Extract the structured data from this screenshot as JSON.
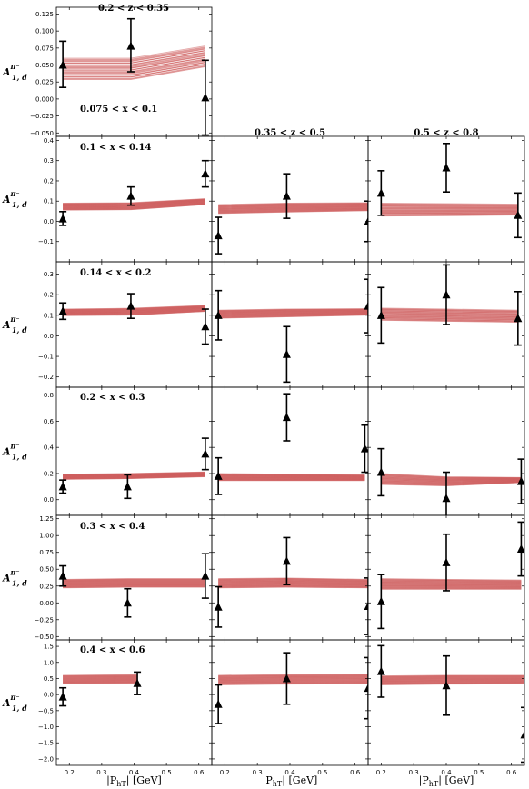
{
  "figure": {
    "column_titles": [
      "0.2 < z < 0.35",
      "0.35 < z < 0.5",
      "0.5 < z < 0.8"
    ],
    "row_labels": [
      "0.075 < x < 0.1",
      "0.1 < x < 0.14",
      "0.14 < x < 0.2",
      "0.2 < x < 0.3",
      "0.3 < x < 0.4",
      "0.4 < x < 0.6"
    ],
    "ylabel": "A",
    "ylabel_sup": "π⁻",
    "ylabel_sub": "1, d",
    "xlabel": "|P",
    "xlabel_sub": "hT",
    "xlabel_unit": "| [GeV]",
    "x_ticks": [
      0.2,
      0.3,
      0.4,
      0.5,
      0.6
    ],
    "x_tick_labels": [
      "0.2",
      "0.3",
      "0.4",
      "0.5",
      "0.6"
    ],
    "xlim": [
      0.16,
      0.64
    ],
    "band_color": "#cd5c5c",
    "marker_color": "#000000"
  },
  "chart_data": [
    {
      "type": "scatter",
      "row": 0,
      "col": 0,
      "ylim": [
        -0.055,
        0.135
      ],
      "yticks": [
        -0.05,
        -0.025,
        0.0,
        0.025,
        0.05,
        0.075,
        0.1,
        0.125
      ],
      "ytick_labels": [
        "−0.050",
        "−0.025",
        "0.000",
        "0.025",
        "0.050",
        "0.075",
        "0.100",
        "0.125"
      ],
      "x": [
        0.18,
        0.39,
        0.62
      ],
      "y": [
        0.05,
        0.078,
        0.002
      ],
      "yerr": [
        [
          0.033,
          0.035
        ],
        [
          0.038,
          0.04
        ],
        [
          0.055,
          0.055
        ]
      ],
      "band": {
        "x": [
          0.18,
          0.39,
          0.62
        ],
        "lo": [
          0.028,
          0.028,
          0.047
        ],
        "hi": [
          0.06,
          0.06,
          0.078
        ]
      }
    },
    {
      "type": "scatter",
      "row": 1,
      "col": 0,
      "ylim": [
        -0.2,
        0.42
      ],
      "yticks": [
        -0.1,
        0.0,
        0.1,
        0.2,
        0.3,
        0.4
      ],
      "ytick_labels": [
        "−0.1",
        "0.0",
        "0.1",
        "0.2",
        "0.3",
        "0.4"
      ],
      "x": [
        0.18,
        0.39,
        0.62
      ],
      "y": [
        0.013,
        0.125,
        0.235
      ],
      "yerr": [
        [
          0.033,
          0.035
        ],
        [
          0.045,
          0.045
        ],
        [
          0.065,
          0.065
        ]
      ],
      "band": {
        "x": [
          0.18,
          0.39,
          0.62
        ],
        "lo": [
          0.055,
          0.057,
          0.082
        ],
        "hi": [
          0.09,
          0.092,
          0.112
        ]
      }
    },
    {
      "type": "scatter",
      "row": 1,
      "col": 1,
      "ylim": [
        -0.2,
        0.42
      ],
      "yticks": [
        -0.1,
        0.0,
        0.1,
        0.2,
        0.3,
        0.4
      ],
      "ytick_labels": [],
      "x": [
        0.18,
        0.39,
        0.64
      ],
      "y": [
        -0.07,
        0.125,
        0.0
      ],
      "yerr": [
        [
          0.09,
          0.09
        ],
        [
          0.11,
          0.11
        ],
        [
          0.1,
          0.1
        ]
      ],
      "band": {
        "x": [
          0.18,
          0.39,
          0.64
        ],
        "lo": [
          0.038,
          0.045,
          0.052
        ],
        "hi": [
          0.083,
          0.09,
          0.092
        ]
      }
    },
    {
      "type": "scatter",
      "row": 1,
      "col": 2,
      "ylim": [
        -0.2,
        0.42
      ],
      "yticks": [
        -0.1,
        0.0,
        0.1,
        0.2,
        0.3,
        0.4
      ],
      "ytick_labels": [],
      "x": [
        0.2,
        0.4,
        0.62
      ],
      "y": [
        0.14,
        0.265,
        0.03
      ],
      "yerr": [
        [
          0.11,
          0.11
        ],
        [
          0.12,
          0.12
        ],
        [
          0.11,
          0.11
        ]
      ],
      "band": {
        "x": [
          0.2,
          0.4,
          0.62
        ],
        "lo": [
          0.025,
          0.027,
          0.03
        ],
        "hi": [
          0.09,
          0.088,
          0.085
        ]
      }
    },
    {
      "type": "scatter",
      "row": 2,
      "col": 0,
      "ylim": [
        -0.25,
        0.36
      ],
      "yticks": [
        -0.2,
        -0.1,
        0.0,
        0.1,
        0.2,
        0.3
      ],
      "ytick_labels": [
        "−0.2",
        "−0.1",
        "0.0",
        "0.1",
        "0.2",
        "0.3"
      ],
      "x": [
        0.18,
        0.39,
        0.62
      ],
      "y": [
        0.12,
        0.145,
        0.045
      ],
      "yerr": [
        [
          0.04,
          0.04
        ],
        [
          0.06,
          0.06
        ],
        [
          0.085,
          0.085
        ]
      ],
      "band": {
        "x": [
          0.18,
          0.39,
          0.62
        ],
        "lo": [
          0.098,
          0.1,
          0.118
        ],
        "hi": [
          0.13,
          0.134,
          0.148
        ]
      }
    },
    {
      "type": "scatter",
      "row": 2,
      "col": 1,
      "ylim": [
        -0.25,
        0.36
      ],
      "yticks": [
        -0.2,
        -0.1,
        0.0,
        0.1,
        0.2,
        0.3
      ],
      "ytick_labels": [],
      "x": [
        0.18,
        0.39,
        0.64
      ],
      "y": [
        0.1,
        -0.09,
        0.145
      ],
      "yerr": [
        [
          0.12,
          0.12
        ],
        [
          0.135,
          0.135
        ],
        [
          0.13,
          0.13
        ]
      ],
      "band": {
        "x": [
          0.18,
          0.39,
          0.64
        ],
        "lo": [
          0.085,
          0.092,
          0.1
        ],
        "hi": [
          0.125,
          0.13,
          0.132
        ]
      }
    },
    {
      "type": "scatter",
      "row": 2,
      "col": 2,
      "ylim": [
        -0.25,
        0.36
      ],
      "yticks": [
        -0.2,
        -0.1,
        0.0,
        0.1,
        0.2,
        0.3
      ],
      "ytick_labels": [],
      "x": [
        0.2,
        0.4,
        0.62
      ],
      "y": [
        0.1,
        0.2,
        0.085
      ],
      "yerr": [
        [
          0.135,
          0.135
        ],
        [
          0.145,
          0.145
        ],
        [
          0.13,
          0.13
        ]
      ],
      "band": {
        "x": [
          0.2,
          0.4,
          0.62
        ],
        "lo": [
          0.075,
          0.07,
          0.065
        ],
        "hi": [
          0.135,
          0.13,
          0.125
        ]
      }
    },
    {
      "type": "scatter",
      "row": 3,
      "col": 0,
      "ylim": [
        -0.12,
        0.86
      ],
      "yticks": [
        0.0,
        0.2,
        0.4,
        0.6,
        0.8
      ],
      "ytick_labels": [
        "0.0",
        "0.2",
        "0.4",
        "0.6",
        "0.8"
      ],
      "x": [
        0.18,
        0.38,
        0.62
      ],
      "y": [
        0.1,
        0.1,
        0.35
      ],
      "yerr": [
        [
          0.05,
          0.05
        ],
        [
          0.09,
          0.09
        ],
        [
          0.12,
          0.12
        ]
      ],
      "band": {
        "x": [
          0.18,
          0.38,
          0.62
        ],
        "lo": [
          0.155,
          0.16,
          0.175
        ],
        "hi": [
          0.195,
          0.2,
          0.212
        ]
      }
    },
    {
      "type": "scatter",
      "row": 3,
      "col": 1,
      "ylim": [
        -0.12,
        0.86
      ],
      "yticks": [
        0.0,
        0.2,
        0.4,
        0.6,
        0.8
      ],
      "ytick_labels": [],
      "x": [
        0.18,
        0.39,
        0.63
      ],
      "y": [
        0.18,
        0.63,
        0.39
      ],
      "yerr": [
        [
          0.14,
          0.14
        ],
        [
          0.18,
          0.18
        ],
        [
          0.18,
          0.18
        ]
      ],
      "band": {
        "x": [
          0.18,
          0.39,
          0.63
        ],
        "lo": [
          0.145,
          0.145,
          0.145
        ],
        "hi": [
          0.2,
          0.195,
          0.19
        ]
      }
    },
    {
      "type": "scatter",
      "row": 3,
      "col": 2,
      "ylim": [
        -0.12,
        0.86
      ],
      "yticks": [
        0.0,
        0.2,
        0.4,
        0.6,
        0.8
      ],
      "ytick_labels": [],
      "x": [
        0.2,
        0.4,
        0.63
      ],
      "y": [
        0.21,
        0.01,
        0.14
      ],
      "yerr": [
        [
          0.18,
          0.18
        ],
        [
          0.2,
          0.2
        ],
        [
          0.17,
          0.17
        ]
      ],
      "band": {
        "x": [
          0.2,
          0.4,
          0.63
        ],
        "lo": [
          0.115,
          0.105,
          0.13
        ],
        "hi": [
          0.2,
          0.175,
          0.17
        ]
      }
    },
    {
      "type": "scatter",
      "row": 4,
      "col": 0,
      "ylim": [
        -0.55,
        1.3
      ],
      "yticks": [
        -0.5,
        -0.25,
        0.0,
        0.25,
        0.5,
        0.75,
        1.0,
        1.25
      ],
      "ytick_labels": [
        "−0.50",
        "−0.25",
        "0.00",
        "0.25",
        "0.50",
        "0.75",
        "1.00",
        "1.25"
      ],
      "x": [
        0.18,
        0.38,
        0.62
      ],
      "y": [
        0.4,
        0.0,
        0.4
      ],
      "yerr": [
        [
          0.15,
          0.15
        ],
        [
          0.21,
          0.21
        ],
        [
          0.33,
          0.33
        ]
      ],
      "band": {
        "x": [
          0.18,
          0.38,
          0.62
        ],
        "lo": [
          0.22,
          0.23,
          0.23
        ],
        "hi": [
          0.35,
          0.36,
          0.36
        ]
      }
    },
    {
      "type": "scatter",
      "row": 4,
      "col": 1,
      "ylim": [
        -0.55,
        1.3
      ],
      "yticks": [
        -0.5,
        -0.25,
        0.0,
        0.25,
        0.5,
        0.75,
        1.0,
        1.25
      ],
      "ytick_labels": [],
      "x": [
        0.18,
        0.39,
        0.64
      ],
      "y": [
        -0.06,
        0.62,
        -0.05
      ],
      "yerr": [
        [
          0.3,
          0.3
        ],
        [
          0.35,
          0.35
        ],
        [
          0.42,
          0.42
        ]
      ],
      "band": {
        "x": [
          0.18,
          0.39,
          0.64
        ],
        "lo": [
          0.22,
          0.23,
          0.22
        ],
        "hi": [
          0.36,
          0.37,
          0.35
        ]
      }
    },
    {
      "type": "scatter",
      "row": 4,
      "col": 2,
      "ylim": [
        -0.55,
        1.3
      ],
      "yticks": [
        -0.5,
        -0.25,
        0.0,
        0.25,
        0.5,
        0.75,
        1.0,
        1.25
      ],
      "ytick_labels": [],
      "x": [
        0.2,
        0.4,
        0.63
      ],
      "y": [
        0.02,
        0.6,
        0.8
      ],
      "yerr": [
        [
          0.4,
          0.4
        ],
        [
          0.42,
          0.42
        ],
        [
          0.4,
          0.4
        ]
      ],
      "band": {
        "x": [
          0.2,
          0.4,
          0.63
        ],
        "lo": [
          0.2,
          0.2,
          0.2
        ],
        "hi": [
          0.36,
          0.35,
          0.34
        ]
      }
    },
    {
      "type": "scatter",
      "row": 5,
      "col": 0,
      "ylim": [
        -2.2,
        1.7
      ],
      "yticks": [
        -2.0,
        -1.5,
        -1.0,
        -0.5,
        0.0,
        0.5,
        1.0,
        1.5
      ],
      "ytick_labels": [
        "−2.0",
        "−1.5",
        "−1.0",
        "−0.5",
        "0.0",
        "0.5",
        "1.0",
        "1.5"
      ],
      "x": [
        0.18,
        0.41
      ],
      "y": [
        -0.07,
        0.35
      ],
      "yerr": [
        [
          0.28,
          0.28
        ],
        [
          0.35,
          0.35
        ]
      ],
      "band": {
        "x": [
          0.18,
          0.41
        ],
        "lo": [
          0.33,
          0.35
        ],
        "hi": [
          0.6,
          0.62
        ]
      }
    },
    {
      "type": "scatter",
      "row": 5,
      "col": 1,
      "ylim": [
        -2.2,
        1.7
      ],
      "yticks": [
        -2.0,
        -1.5,
        -1.0,
        -0.5,
        0.0,
        0.5,
        1.0,
        1.5
      ],
      "ytick_labels": [],
      "x": [
        0.18,
        0.39,
        0.64
      ],
      "y": [
        -0.3,
        0.5,
        0.2
      ],
      "yerr": [
        [
          0.6,
          0.6
        ],
        [
          0.8,
          0.8
        ],
        [
          0.95,
          0.95
        ]
      ],
      "band": {
        "x": [
          0.18,
          0.39,
          0.64
        ],
        "lo": [
          0.3,
          0.32,
          0.33
        ],
        "hi": [
          0.6,
          0.62,
          0.63
        ]
      }
    },
    {
      "type": "scatter",
      "row": 5,
      "col": 2,
      "ylim": [
        -2.2,
        1.7
      ],
      "yticks": [
        -2.0,
        -1.5,
        -1.0,
        -0.5,
        0.0,
        0.5,
        1.0,
        1.5
      ],
      "ytick_labels": [],
      "x": [
        0.2,
        0.4,
        0.64
      ],
      "y": [
        0.72,
        0.28,
        -1.25
      ],
      "yerr": [
        [
          0.8,
          0.8
        ],
        [
          0.92,
          0.92
        ],
        [
          0.85,
          0.85
        ]
      ],
      "band": {
        "x": [
          0.2,
          0.4,
          0.64
        ],
        "lo": [
          0.3,
          0.32,
          0.33
        ],
        "hi": [
          0.58,
          0.6,
          0.6
        ]
      }
    }
  ]
}
